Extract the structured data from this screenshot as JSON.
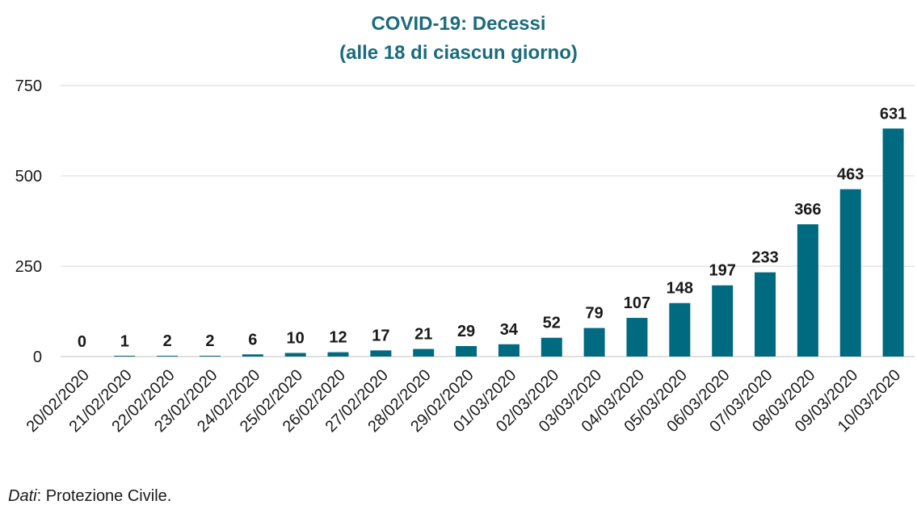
{
  "chart_data": {
    "type": "bar",
    "title": "COVID-19: Decessi",
    "subtitle": "(alle 18 di ciascun giorno)",
    "xlabel": "",
    "ylabel": "",
    "ylim": [
      0,
      750
    ],
    "yticks": [
      0,
      250,
      500,
      750
    ],
    "grid": true,
    "legend": "none",
    "bar_color": "#006a80",
    "categories": [
      "20/02/2020",
      "21/02/2020",
      "22/02/2020",
      "23/02/2020",
      "24/02/2020",
      "25/02/2020",
      "26/02/2020",
      "27/02/2020",
      "28/02/2020",
      "29/02/2020",
      "01/03/2020",
      "02/03/2020",
      "03/03/2020",
      "04/03/2020",
      "05/03/2020",
      "06/03/2020",
      "07/03/2020",
      "08/03/2020",
      "09/03/2020",
      "10/03/2020"
    ],
    "values": [
      0,
      1,
      2,
      2,
      6,
      10,
      12,
      17,
      21,
      29,
      34,
      52,
      79,
      107,
      148,
      197,
      233,
      366,
      463,
      631
    ]
  },
  "source": {
    "prefix": "Dati",
    "text": ": Protezione Civile."
  }
}
